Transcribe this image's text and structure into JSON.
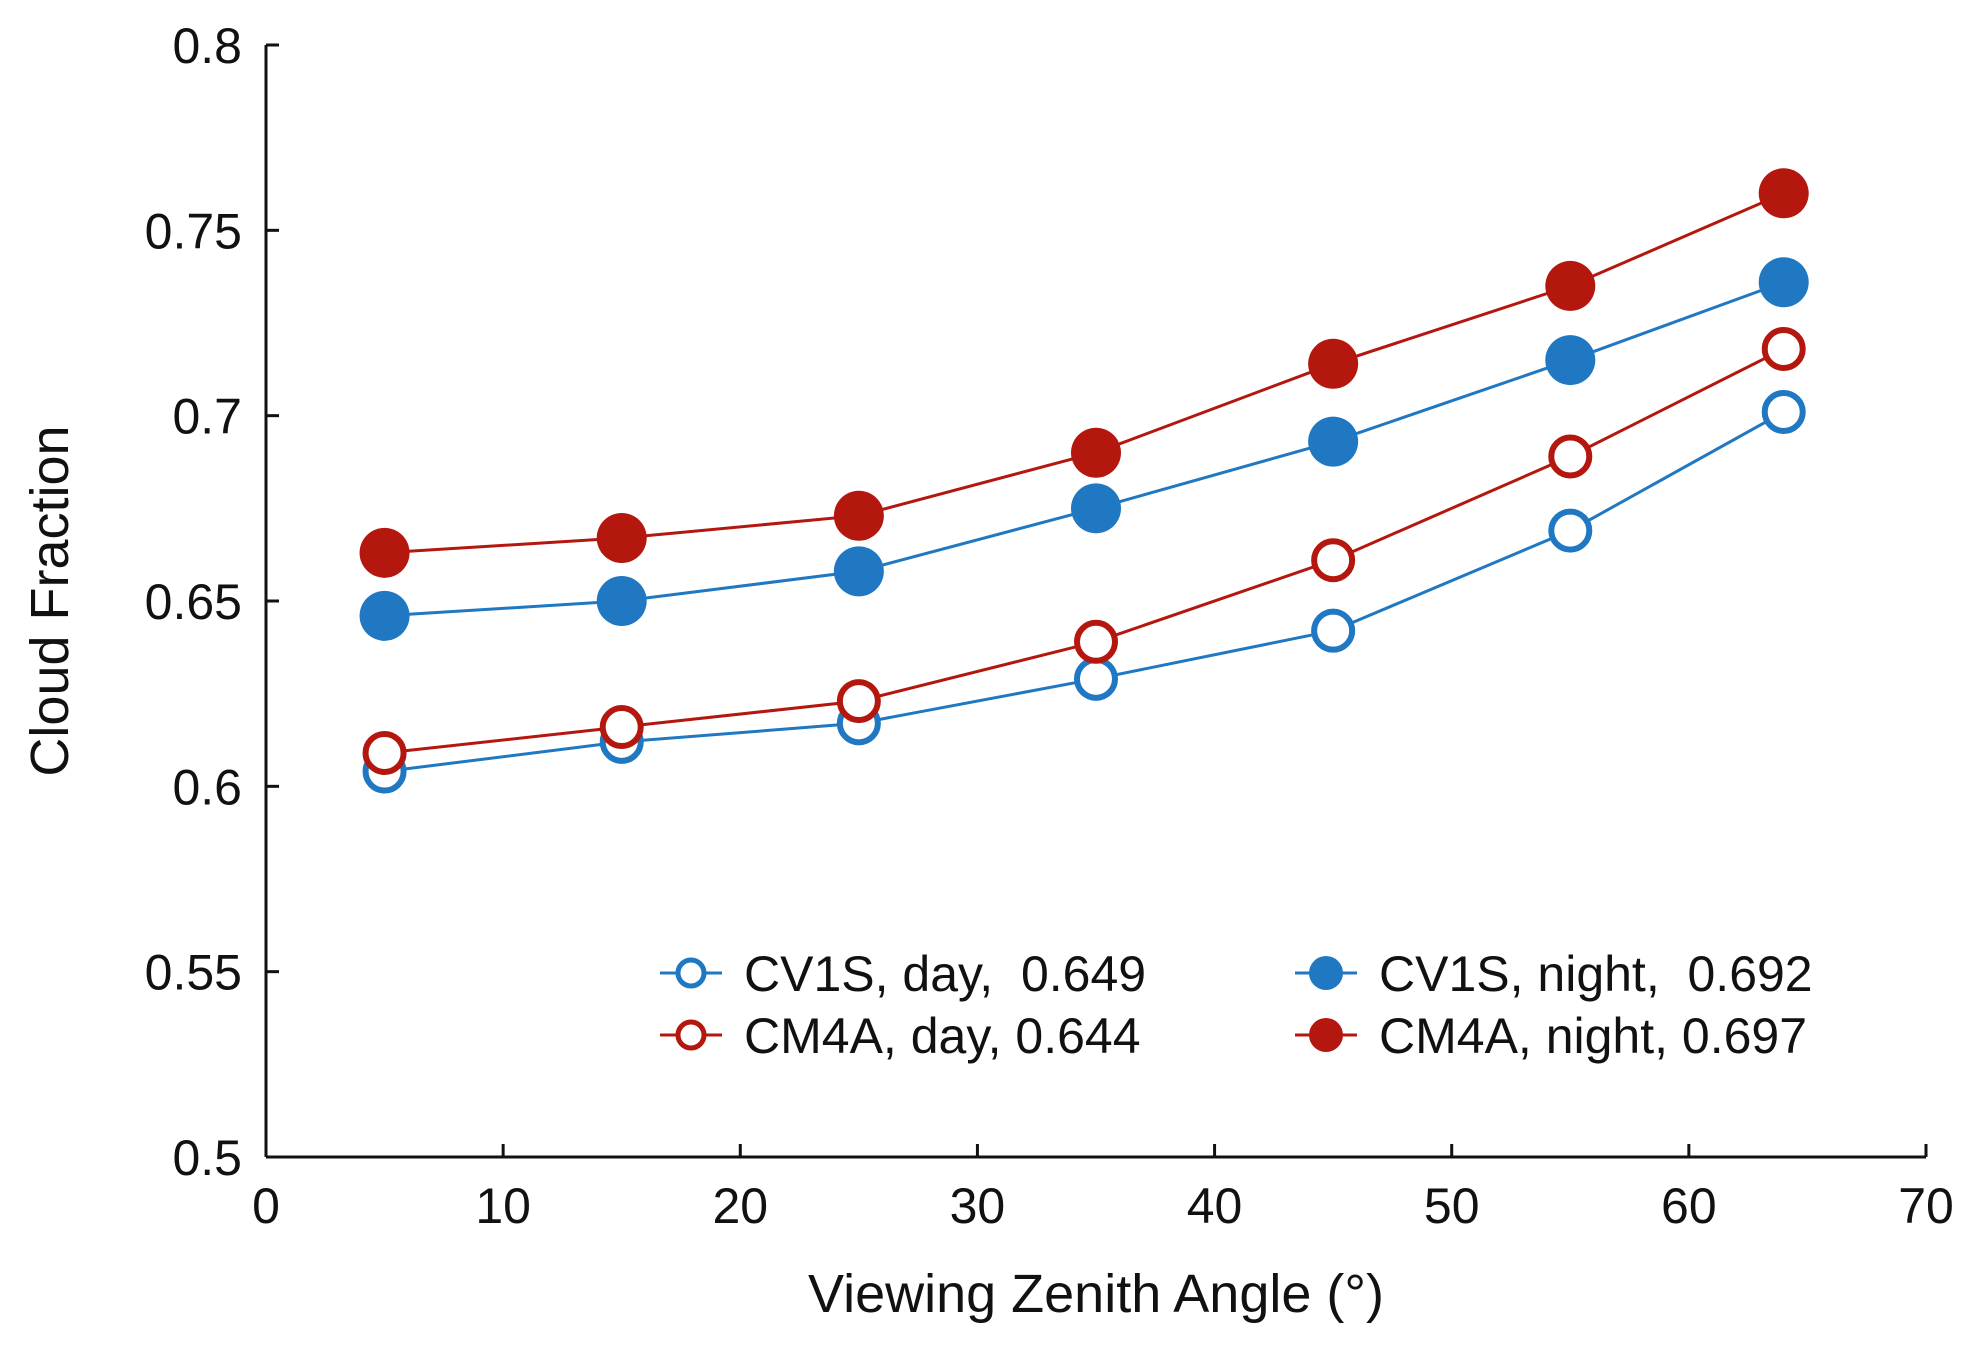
{
  "chart_data": {
    "type": "line",
    "title": "",
    "xlabel": "Viewing Zenith Angle (°)",
    "ylabel": "Cloud Fraction",
    "xlim": [
      0,
      70
    ],
    "ylim": [
      0.5,
      0.8
    ],
    "xticks": [
      0,
      10,
      20,
      30,
      40,
      50,
      60,
      70
    ],
    "xtick_labels": [
      "0",
      "10",
      "20",
      "30",
      "40",
      "50",
      "60",
      "70"
    ],
    "yticks": [
      0.5,
      0.55,
      0.6,
      0.65,
      0.7,
      0.75,
      0.8
    ],
    "ytick_labels": [
      "0.5",
      "0.55",
      "0.6",
      "0.65",
      "0.7",
      "0.75",
      "0.8"
    ],
    "grid": false,
    "legend_position": "bottom-right",
    "x": [
      5,
      15,
      25,
      35,
      45,
      55,
      64
    ],
    "series": [
      {
        "name": "CV1S, day,  0.649",
        "key": "cv1s-day",
        "color": "#1f78c1",
        "marker": "open-circle",
        "values": [
          0.604,
          0.612,
          0.617,
          0.629,
          0.642,
          0.669,
          0.701
        ]
      },
      {
        "name": "CV1S, night,  0.692",
        "key": "cv1s-night",
        "color": "#1f78c1",
        "marker": "filled-circle",
        "values": [
          0.646,
          0.65,
          0.658,
          0.675,
          0.693,
          0.715,
          0.736
        ]
      },
      {
        "name": "CM4A, day, 0.644",
        "key": "cm4a-day",
        "color": "#b4170e",
        "marker": "open-circle",
        "values": [
          0.609,
          0.616,
          0.623,
          0.639,
          0.661,
          0.689,
          0.718
        ]
      },
      {
        "name": "CM4A, night, 0.697",
        "key": "cm4a-night",
        "color": "#b4170e",
        "marker": "filled-circle",
        "values": [
          0.663,
          0.667,
          0.673,
          0.69,
          0.714,
          0.735,
          0.76
        ]
      }
    ],
    "legend_order": [
      0,
      1,
      2,
      3
    ]
  }
}
